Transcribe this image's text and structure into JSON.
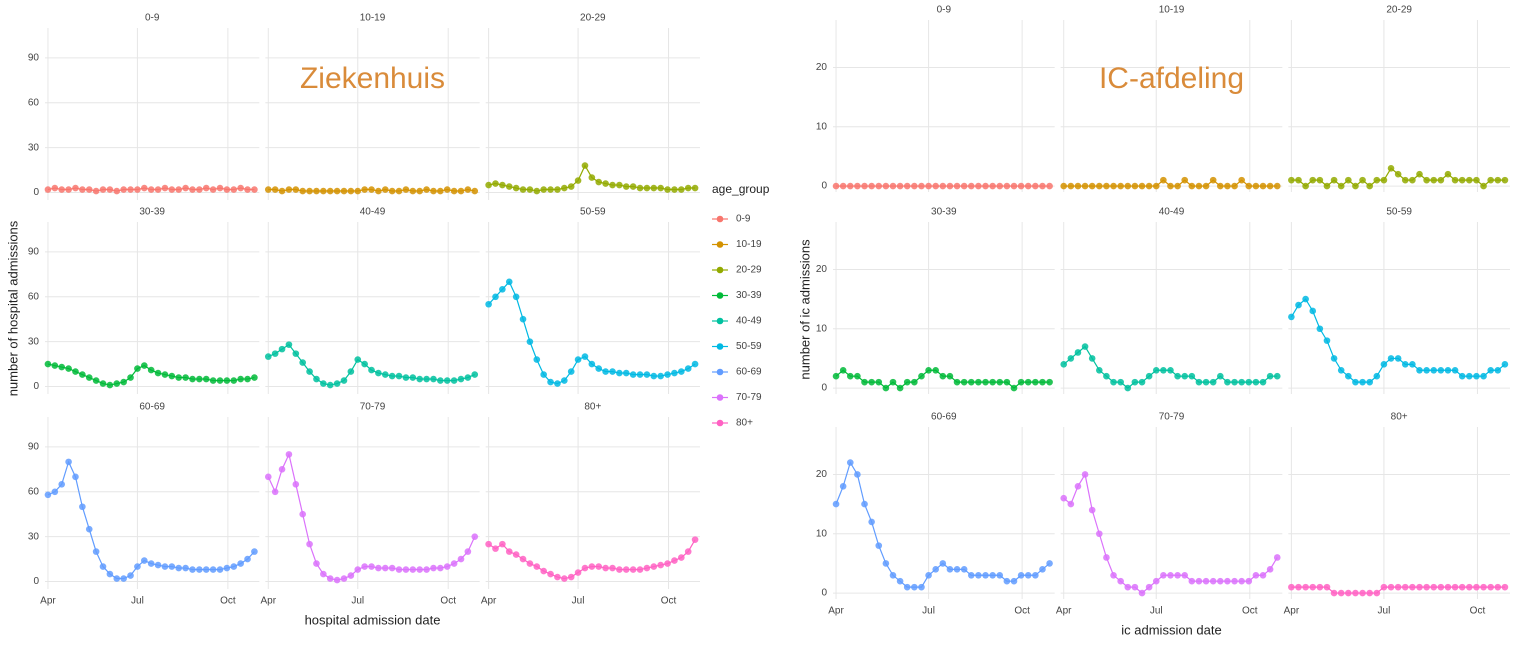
{
  "chart_data": [
    {
      "type": "scatter",
      "title": "Ziekenhuis",
      "title_color": "#d98b3a",
      "xlabel": "hospital admission date",
      "ylabel": "number of hospital admissions",
      "legend": "right",
      "legend_title": "age_group",
      "grid": true,
      "x": [
        0,
        7,
        14,
        21,
        28,
        35,
        42,
        49,
        56,
        63,
        70,
        77,
        84,
        91,
        98,
        105,
        112,
        119,
        126,
        133,
        140,
        147,
        154,
        161,
        168,
        175,
        182,
        189,
        196,
        203,
        210
      ],
      "xlim": [
        -3,
        215
      ],
      "xticks": [
        {
          "value": 0,
          "label": "Apr"
        },
        {
          "value": 91,
          "label": "Jul"
        },
        {
          "value": 183,
          "label": "Oct"
        }
      ],
      "ylim": [
        -5,
        110
      ],
      "yticks": [
        0,
        30,
        60,
        90
      ],
      "series": [
        {
          "name": "0-9",
          "color": "#f8766d",
          "values": [
            2,
            3,
            2,
            2,
            3,
            2,
            2,
            1,
            2,
            2,
            1,
            2,
            2,
            2,
            3,
            2,
            2,
            3,
            2,
            2,
            3,
            2,
            2,
            3,
            2,
            3,
            2,
            2,
            3,
            2,
            2
          ]
        },
        {
          "name": "10-19",
          "color": "#d39200",
          "values": [
            2,
            2,
            1,
            2,
            2,
            1,
            1,
            1,
            1,
            1,
            1,
            1,
            1,
            1,
            2,
            2,
            1,
            2,
            1,
            1,
            2,
            1,
            1,
            2,
            1,
            1,
            2,
            1,
            1,
            2,
            1
          ]
        },
        {
          "name": "20-29",
          "color": "#93aa00",
          "values": [
            5,
            6,
            5,
            4,
            3,
            2,
            2,
            1,
            2,
            2,
            2,
            3,
            4,
            8,
            18,
            10,
            7,
            6,
            5,
            5,
            4,
            4,
            3,
            3,
            3,
            3,
            2,
            2,
            2,
            3,
            3
          ]
        },
        {
          "name": "30-39",
          "color": "#00ba38",
          "values": [
            15,
            14,
            13,
            12,
            10,
            8,
            6,
            4,
            2,
            1,
            2,
            3,
            6,
            12,
            14,
            11,
            9,
            8,
            7,
            6,
            6,
            5,
            5,
            5,
            4,
            4,
            4,
            4,
            5,
            5,
            6
          ]
        },
        {
          "name": "40-49",
          "color": "#00c19f",
          "values": [
            20,
            22,
            25,
            28,
            22,
            16,
            10,
            5,
            2,
            1,
            2,
            4,
            10,
            18,
            15,
            11,
            9,
            8,
            7,
            7,
            6,
            6,
            5,
            5,
            5,
            4,
            4,
            4,
            5,
            6,
            8
          ]
        },
        {
          "name": "50-59",
          "color": "#00b9e3",
          "values": [
            55,
            60,
            65,
            70,
            60,
            45,
            30,
            18,
            8,
            3,
            2,
            4,
            10,
            18,
            20,
            15,
            12,
            10,
            10,
            9,
            9,
            8,
            8,
            8,
            7,
            7,
            8,
            9,
            10,
            12,
            15
          ]
        },
        {
          "name": "60-69",
          "color": "#619cff",
          "values": [
            58,
            60,
            65,
            80,
            70,
            50,
            35,
            20,
            10,
            5,
            2,
            2,
            4,
            10,
            14,
            12,
            11,
            10,
            10,
            9,
            9,
            8,
            8,
            8,
            8,
            8,
            9,
            10,
            12,
            15,
            20
          ]
        },
        {
          "name": "70-79",
          "color": "#db72fb",
          "values": [
            70,
            60,
            75,
            85,
            65,
            45,
            25,
            12,
            5,
            2,
            1,
            2,
            4,
            8,
            10,
            10,
            9,
            9,
            9,
            8,
            8,
            8,
            8,
            8,
            9,
            9,
            10,
            12,
            15,
            20,
            30
          ]
        },
        {
          "name": "80+",
          "color": "#ff61c3",
          "values": [
            25,
            22,
            25,
            20,
            18,
            15,
            12,
            10,
            7,
            5,
            3,
            2,
            3,
            6,
            9,
            10,
            10,
            9,
            9,
            8,
            8,
            8,
            8,
            9,
            10,
            11,
            12,
            14,
            16,
            20,
            28
          ]
        }
      ]
    },
    {
      "type": "scatter",
      "title": "IC-afdeling",
      "title_color": "#d98b3a",
      "xlabel": "ic admission date",
      "ylabel": "number of ic admissions",
      "grid": true,
      "x": [
        0,
        7,
        14,
        21,
        28,
        35,
        42,
        49,
        56,
        63,
        70,
        77,
        84,
        91,
        98,
        105,
        112,
        119,
        126,
        133,
        140,
        147,
        154,
        161,
        168,
        175,
        182,
        189,
        196,
        203,
        210
      ],
      "xlim": [
        -3,
        215
      ],
      "xticks": [
        {
          "value": 0,
          "label": "Apr"
        },
        {
          "value": 91,
          "label": "Jul"
        },
        {
          "value": 183,
          "label": "Oct"
        }
      ],
      "ylim": [
        -1,
        28
      ],
      "yticks": [
        0,
        10,
        20
      ],
      "series": [
        {
          "name": "0-9",
          "color": "#f8766d",
          "values": [
            0,
            0,
            0,
            0,
            0,
            0,
            0,
            0,
            0,
            0,
            0,
            0,
            0,
            0,
            0,
            0,
            0,
            0,
            0,
            0,
            0,
            0,
            0,
            0,
            0,
            0,
            0,
            0,
            0,
            0,
            0
          ]
        },
        {
          "name": "10-19",
          "color": "#d39200",
          "values": [
            0,
            0,
            0,
            0,
            0,
            0,
            0,
            0,
            0,
            0,
            0,
            0,
            0,
            0,
            1,
            0,
            0,
            1,
            0,
            0,
            0,
            1,
            0,
            0,
            0,
            1,
            0,
            0,
            0,
            0,
            0
          ]
        },
        {
          "name": "20-29",
          "color": "#93aa00",
          "values": [
            1,
            1,
            0,
            1,
            1,
            0,
            1,
            0,
            1,
            0,
            1,
            0,
            1,
            1,
            3,
            2,
            1,
            1,
            2,
            1,
            1,
            1,
            2,
            1,
            1,
            1,
            1,
            0,
            1,
            1,
            1
          ]
        },
        {
          "name": "30-39",
          "color": "#00ba38",
          "values": [
            2,
            3,
            2,
            2,
            1,
            1,
            1,
            0,
            1,
            0,
            1,
            1,
            2,
            3,
            3,
            2,
            2,
            1,
            1,
            1,
            1,
            1,
            1,
            1,
            1,
            0,
            1,
            1,
            1,
            1,
            1
          ]
        },
        {
          "name": "40-49",
          "color": "#00c19f",
          "values": [
            4,
            5,
            6,
            7,
            5,
            3,
            2,
            1,
            1,
            0,
            1,
            1,
            2,
            3,
            3,
            3,
            2,
            2,
            2,
            1,
            1,
            1,
            2,
            1,
            1,
            1,
            1,
            1,
            1,
            2,
            2
          ]
        },
        {
          "name": "50-59",
          "color": "#00b9e3",
          "values": [
            12,
            14,
            15,
            13,
            10,
            8,
            5,
            3,
            2,
            1,
            1,
            1,
            2,
            4,
            5,
            5,
            4,
            4,
            3,
            3,
            3,
            3,
            3,
            3,
            2,
            2,
            2,
            2,
            3,
            3,
            4
          ]
        },
        {
          "name": "60-69",
          "color": "#619cff",
          "values": [
            15,
            18,
            22,
            20,
            15,
            12,
            8,
            5,
            3,
            2,
            1,
            1,
            1,
            3,
            4,
            5,
            4,
            4,
            4,
            3,
            3,
            3,
            3,
            3,
            2,
            2,
            3,
            3,
            3,
            4,
            5
          ]
        },
        {
          "name": "70-79",
          "color": "#db72fb",
          "values": [
            16,
            15,
            18,
            20,
            14,
            10,
            6,
            3,
            2,
            1,
            1,
            0,
            1,
            2,
            3,
            3,
            3,
            3,
            2,
            2,
            2,
            2,
            2,
            2,
            2,
            2,
            2,
            3,
            3,
            4,
            6
          ]
        },
        {
          "name": "80+",
          "color": "#ff61c3",
          "values": [
            1,
            1,
            1,
            1,
            1,
            1,
            0,
            0,
            0,
            0,
            0,
            0,
            0,
            1,
            1,
            1,
            1,
            1,
            1,
            1,
            1,
            1,
            1,
            1,
            1,
            1,
            1,
            1,
            1,
            1,
            1
          ]
        }
      ]
    }
  ]
}
